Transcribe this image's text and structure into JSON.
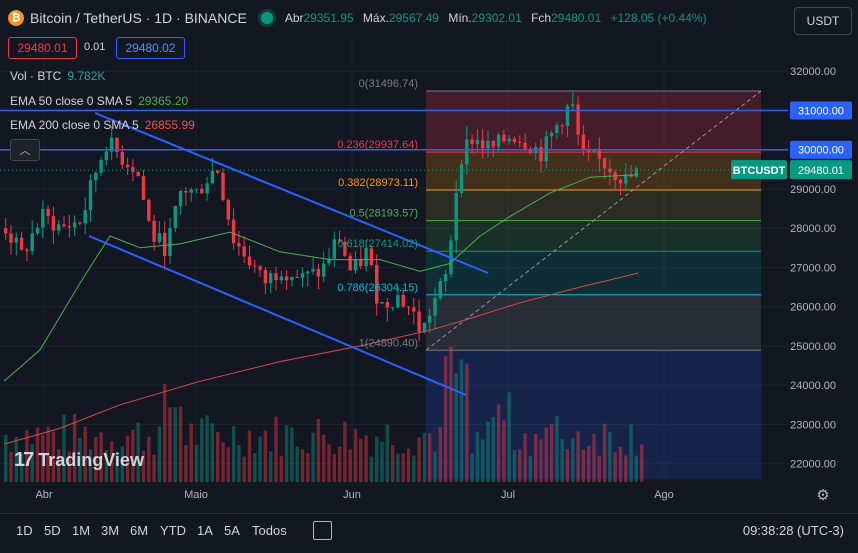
{
  "header": {
    "coin_symbol": "₿",
    "title": "Bitcoin / TetherUS · 1D · BINANCE",
    "ohlc": [
      {
        "label": "Abr",
        "value": "29351.95"
      },
      {
        "label": "Máx.",
        "value": "29567.49"
      },
      {
        "label": "Mín.",
        "value": "29302.01"
      },
      {
        "label": "Fch",
        "value": "29480.01"
      }
    ],
    "change": "+128.05 (+0.44%)",
    "currency": "USDT",
    "sell_price": "29480.01",
    "spread": "0.01",
    "buy_price": "29480.02"
  },
  "legend": {
    "volume": {
      "label": "Vol · BTC",
      "value": "9.782K"
    },
    "ema50": {
      "label": "EMA 50 close 0 SMA 5",
      "value": "29365.20"
    },
    "ema200": {
      "label": "EMA 200 close 0 SMA 5",
      "value": "26855.99"
    }
  },
  "branding": {
    "logo_text": "TradingView"
  },
  "bottom": {
    "timeframes": [
      "1D",
      "5D",
      "1M",
      "3M",
      "6M",
      "YTD",
      "1A",
      "5A",
      "Todos"
    ],
    "clock": "09:38:28 (UTC-3)"
  },
  "colors": {
    "up": "#089981",
    "down": "#f23645",
    "ema50": "#4caf50",
    "ema200": "#d84a4a",
    "channel": "#2962ff",
    "level": "#2962ff"
  },
  "chart_data": {
    "type": "candlestick",
    "symbol": "BTCUSDT",
    "last_price": 29480.01,
    "y_ticks": [
      22000,
      23000,
      24000,
      25000,
      26000,
      27000,
      28000,
      29000,
      30000,
      31000,
      32000
    ],
    "y_tick_labels": [
      "22000.00",
      "23000.00",
      "24000.00",
      "25000.00",
      "26000.00",
      "27000.00",
      "28000.00",
      "29000.00",
      "30000.00",
      "31000.00",
      "32000.00"
    ],
    "x_labels": [
      "Abr",
      "Maio",
      "Jun",
      "Jul",
      "Ago"
    ],
    "fib_levels": [
      {
        "ratio": "0",
        "price": 31496.74,
        "label": "0(31496.74)"
      },
      {
        "ratio": "0.236",
        "price": 29937.64,
        "label": "0.236(29937.64)"
      },
      {
        "ratio": "0.382",
        "price": 28973.11,
        "label": "0.382(28973.11)"
      },
      {
        "ratio": "0.5",
        "price": 28193.57,
        "label": "0.5(28193.57)"
      },
      {
        "ratio": "0.618",
        "price": 27414.02,
        "label": "0.618(27414.02)"
      },
      {
        "ratio": "0.786",
        "price": 26304.15,
        "label": "0.786(26304.15)"
      },
      {
        "ratio": "1",
        "price": 24890.4,
        "label": "1(24890.40)"
      }
    ],
    "horizontal_levels": [
      {
        "price": 31000,
        "label": "31000.00"
      },
      {
        "price": 30000,
        "label": "30000.00"
      }
    ],
    "ema50_last": 29365.2,
    "ema200_last": 26855.99,
    "volume_last": "9.782K"
  }
}
